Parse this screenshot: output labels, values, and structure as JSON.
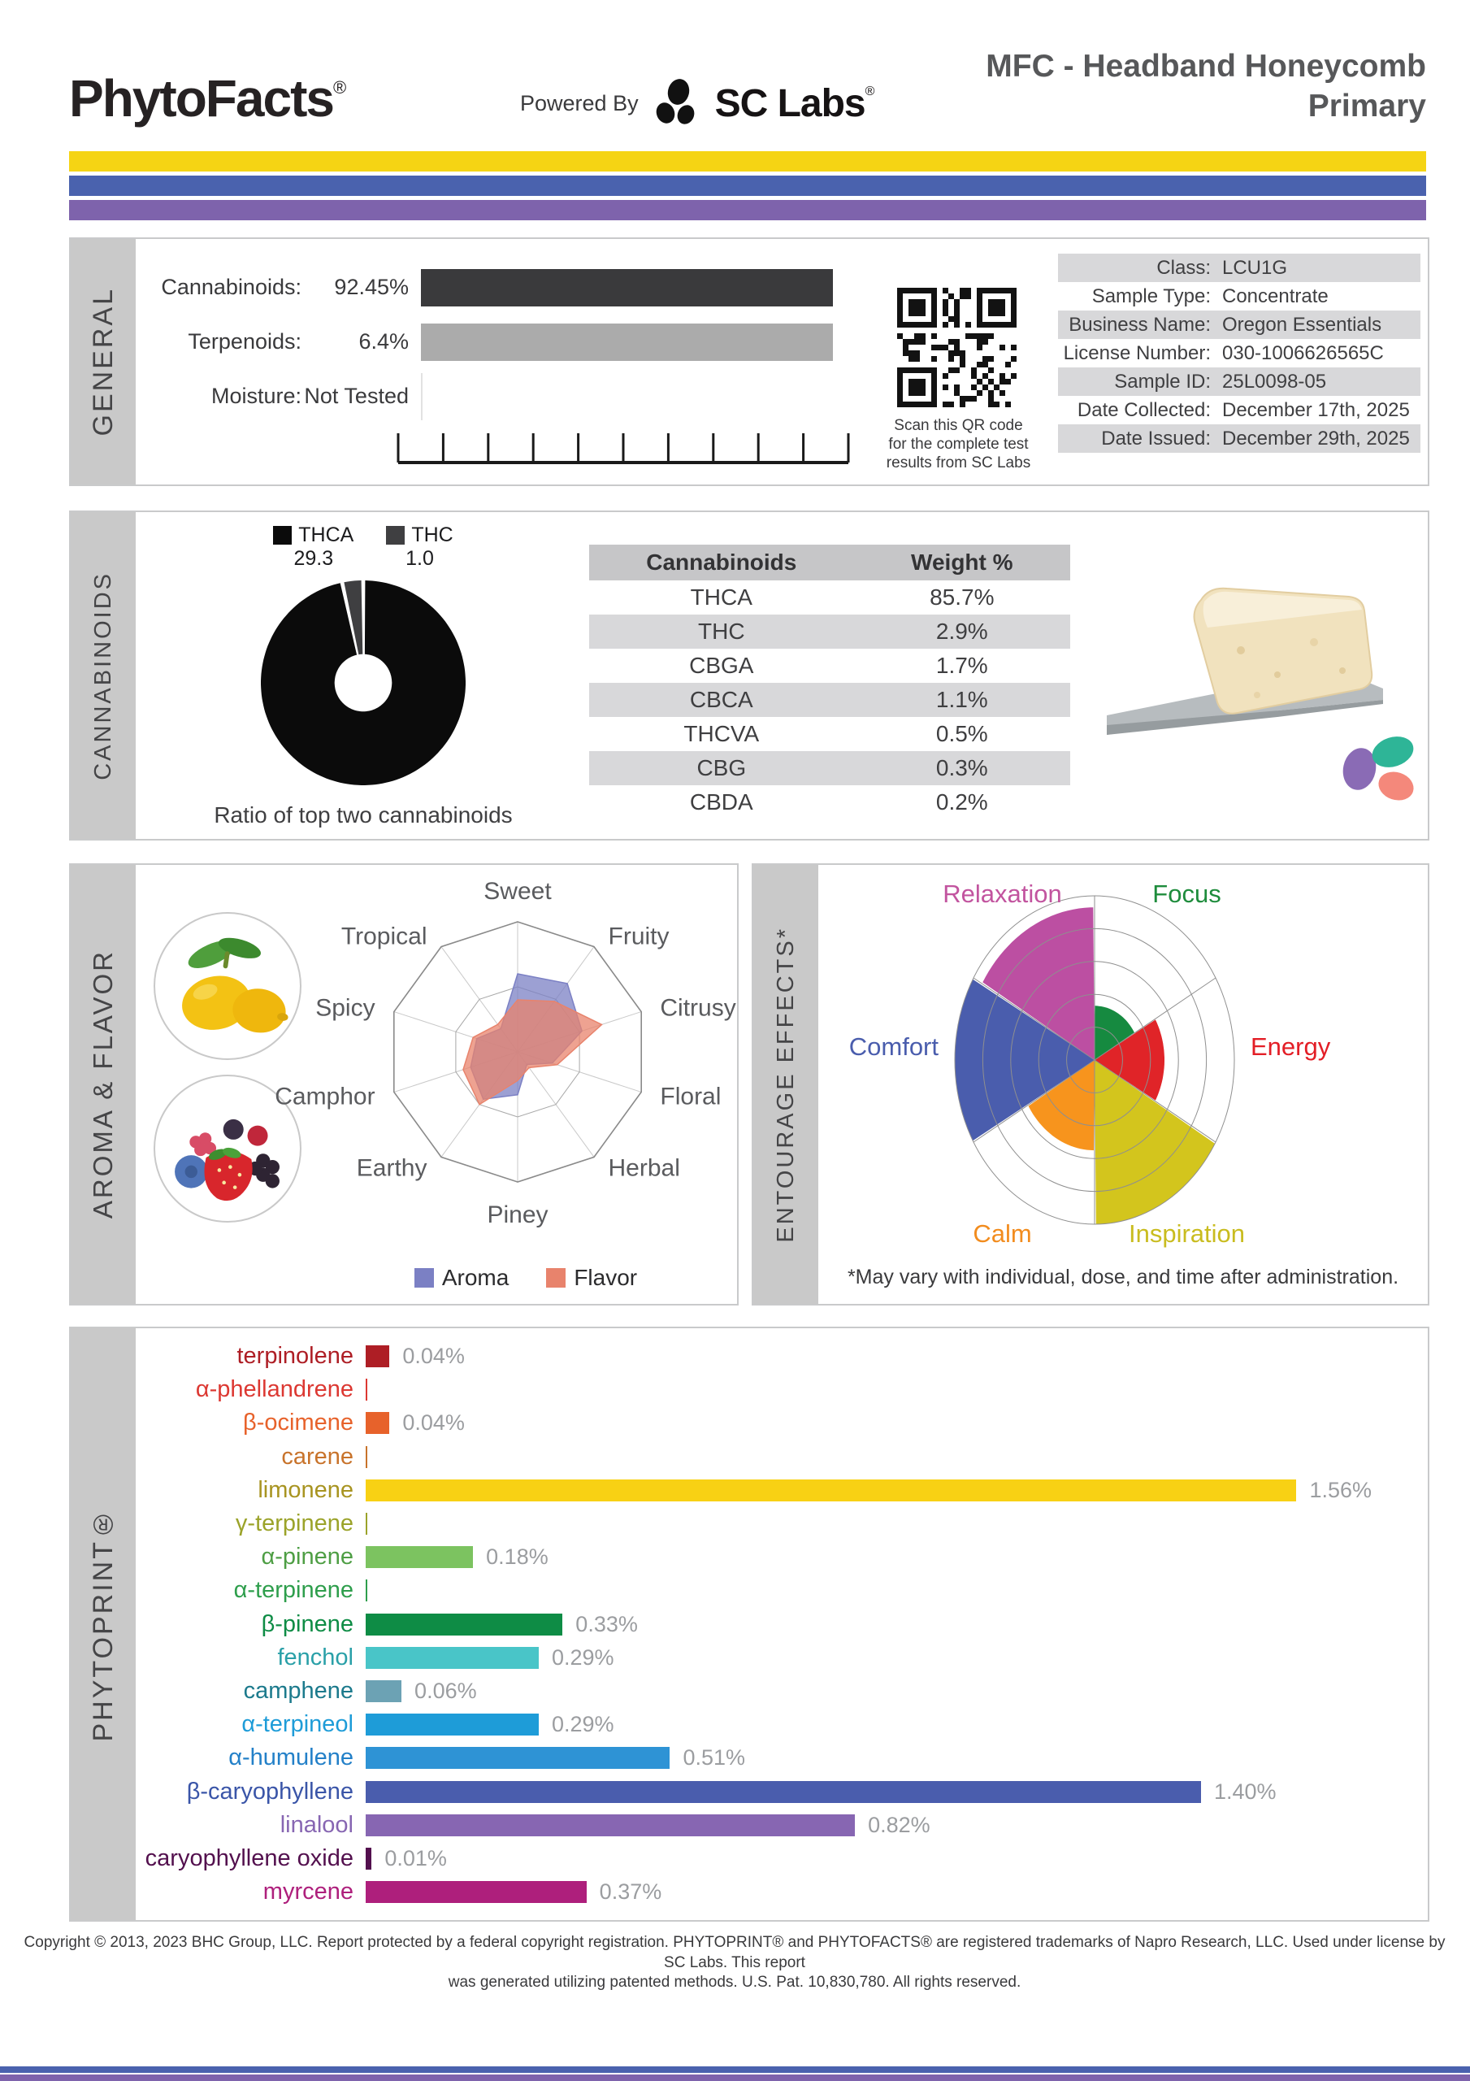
{
  "header": {
    "logo_text": "PhytoFacts",
    "logo_reg": "®",
    "powered_by": "Powered By",
    "sc_labs_text": "SC Labs",
    "sc_labs_reg": "®",
    "title_line1": "MFC - Headband Honeycomb",
    "title_line2": "Primary"
  },
  "stripes": {
    "yellow": "#F5D414",
    "blue": "#4A62AE",
    "purple": "#7E63AC"
  },
  "general": {
    "section_label": "GENERAL",
    "metrics": [
      {
        "label": "Cannabinoids:",
        "value": "92.45%",
        "bar_color": "#3A3A3C",
        "bar_pct": 97
      },
      {
        "label": "Terpenoids:",
        "value": "6.4%",
        "bar_color": "#ABABAB",
        "bar_pct": 97
      },
      {
        "label": "Moisture:",
        "value": "Not Tested",
        "bar_color": null,
        "bar_pct": 0
      }
    ],
    "ruler_intervals": 10,
    "qr_caption_lines": [
      "Scan this QR code",
      "for the complete test",
      "results from SC Labs"
    ],
    "info_table": [
      {
        "label": "Class:",
        "value": "LCU1G"
      },
      {
        "label": "Sample Type:",
        "value": "Concentrate"
      },
      {
        "label": "Business Name:",
        "value": "Oregon Essentials"
      },
      {
        "label": "License Number:",
        "value": "030-1006626565C"
      },
      {
        "label": "Sample ID:",
        "value": "25L0098-05"
      },
      {
        "label": "Date Collected:",
        "value": "December 17th, 2025"
      },
      {
        "label": "Date Issued:",
        "value": "December 29th, 2025"
      }
    ]
  },
  "cannabinoids": {
    "section_label": "CANNABINOIDS",
    "caption": "Ratio of top two cannabinoids",
    "table_headers": [
      "Cannabinoids",
      "Weight %"
    ],
    "table_rows": [
      [
        "THCA",
        "85.7%"
      ],
      [
        "THC",
        "2.9%"
      ],
      [
        "CBGA",
        "1.7%"
      ],
      [
        "CBCA",
        "1.1%"
      ],
      [
        "THCVA",
        "0.5%"
      ],
      [
        "CBG",
        "0.3%"
      ],
      [
        "CBDA",
        "0.2%"
      ]
    ]
  },
  "aroma_flavor": {
    "section_label": "AROMA & FLAVOR"
  },
  "entourage": {
    "section_label": "ENTOURAGE EFFECTS*",
    "footnote": "*May vary with individual, dose, and time after administration."
  },
  "phytoprint": {
    "section_label": "PHYTOPRINT®"
  },
  "footer_line1": "Copyright © 2013, 2023 BHC Group, LLC. Report protected by a federal copyright registration. PHYTOPRINT® and PHYTOFACTS® are registered trademarks of Napro Research, LLC. Used under license by SC Labs. This report",
  "footer_line2": "was generated utilizing patented methods. U.S. Pat. 10,830,780. All rights reserved.",
  "chart_data": [
    {
      "id": "general-bars",
      "type": "bar",
      "orientation": "horizontal",
      "title": "General composition",
      "bars": [
        {
          "name": "Cannabinoids",
          "value": 92.45,
          "display": "92.45%"
        },
        {
          "name": "Terpenoids",
          "value": 6.4,
          "display": "6.4%"
        },
        {
          "name": "Moisture",
          "value": null,
          "display": "Not Tested"
        }
      ]
    },
    {
      "id": "cannabinoid-ratio-donut",
      "type": "pie",
      "title": "Ratio of top two cannabinoids",
      "donut_hole": 0.28,
      "slices": [
        {
          "label": "THCA",
          "value": 29.3,
          "color": "#0B0B0B"
        },
        {
          "label": "THC",
          "value": 1.0,
          "color": "#3F3F41"
        }
      ]
    },
    {
      "id": "aroma-flavor-radar",
      "type": "radar",
      "axes": [
        "Sweet",
        "Fruity",
        "Citrusy",
        "Floral",
        "Herbal",
        "Piney",
        "Earthy",
        "Camphor",
        "Spicy",
        "Tropical"
      ],
      "scale_max": 1,
      "grid_levels": [
        1,
        0.5
      ],
      "series": [
        {
          "name": "Aroma",
          "color": "#7B80C4",
          "values": [
            0.6,
            0.65,
            0.52,
            0.28,
            0.12,
            0.33,
            0.45,
            0.38,
            0.33,
            0.22
          ]
        },
        {
          "name": "Flavor",
          "color": "#E8836C",
          "values": [
            0.4,
            0.48,
            0.68,
            0.32,
            0.15,
            0.22,
            0.5,
            0.44,
            0.36,
            0.26
          ]
        }
      ]
    },
    {
      "id": "entourage-polar",
      "type": "polar-sectors",
      "rings": 5,
      "sectors": [
        {
          "label": "Focus",
          "color": "#168A40",
          "label_color": "#1E8C3C",
          "value": 0.33
        },
        {
          "label": "Energy",
          "color": "#E02428",
          "label_color": "#E31E26",
          "value": 0.5
        },
        {
          "label": "Inspiration",
          "color": "#D3C51D",
          "label_color": "#C9BC1F",
          "value": 1.0
        },
        {
          "label": "Calm",
          "color": "#F7941D",
          "label_color": "#F28C1E",
          "value": 0.55
        },
        {
          "label": "Comfort",
          "color": "#4A5DAD",
          "label_color": "#4A5DAD",
          "value": 1.0
        },
        {
          "label": "Relaxation",
          "color": "#BC4FA2",
          "label_color": "#C2549F",
          "value": 0.93
        }
      ]
    },
    {
      "id": "phytoprint-bars",
      "type": "bar",
      "orientation": "horizontal",
      "unit": "%",
      "scale_max": 1.78,
      "bars": [
        {
          "name": "terpinolene",
          "value": 0.04,
          "display": "0.04%",
          "color": "#AE1E25",
          "label_color": "#AE1E25"
        },
        {
          "name": "α-phellandrene",
          "value": 0,
          "display": "",
          "color": "#DC3832",
          "label_color": "#DC3832"
        },
        {
          "name": "β-ocimene",
          "value": 0.04,
          "display": "0.04%",
          "color": "#E7622B",
          "label_color": "#E7622B"
        },
        {
          "name": "carene",
          "value": 0,
          "display": "",
          "color": "#C8732B",
          "label_color": "#C8732B"
        },
        {
          "name": "limonene",
          "value": 1.56,
          "display": "1.56%",
          "color": "#F8D114",
          "label_color": "#A89421"
        },
        {
          "name": "γ-terpinene",
          "value": 0,
          "display": "",
          "color": "#9BA32A",
          "label_color": "#9BA32A"
        },
        {
          "name": "α-pinene",
          "value": 0.18,
          "display": "0.18%",
          "color": "#7CC360",
          "label_color": "#4E9E44"
        },
        {
          "name": "α-terpinene",
          "value": 0,
          "display": "",
          "color": "#2E9E4C",
          "label_color": "#2E9E4C"
        },
        {
          "name": "β-pinene",
          "value": 0.33,
          "display": "0.33%",
          "color": "#0E8C45",
          "label_color": "#0E8C45"
        },
        {
          "name": "fenchol",
          "value": 0.29,
          "display": "0.29%",
          "color": "#49C5C8",
          "label_color": "#2AA0A8"
        },
        {
          "name": "camphene",
          "value": 0.06,
          "display": "0.06%",
          "color": "#6CA2B4",
          "label_color": "#1C7A8C"
        },
        {
          "name": "α-terpineol",
          "value": 0.29,
          "display": "0.29%",
          "color": "#1E9CD8",
          "label_color": "#1E9CD8"
        },
        {
          "name": "α-humulene",
          "value": 0.51,
          "display": "0.51%",
          "color": "#2E93D5",
          "label_color": "#2380C8"
        },
        {
          "name": "β-caryophyllene",
          "value": 1.4,
          "display": "1.40%",
          "color": "#4A5DAD",
          "label_color": "#3A55A8"
        },
        {
          "name": "linalool",
          "value": 0.82,
          "display": "0.82%",
          "color": "#8766B2",
          "label_color": "#8766B2"
        },
        {
          "name": "caryophyllene oxide",
          "value": 0.01,
          "display": "0.01%",
          "color": "#53104E",
          "label_color": "#53104E"
        },
        {
          "name": "myrcene",
          "value": 0.37,
          "display": "0.37%",
          "color": "#AE1F7C",
          "label_color": "#AE1F7C"
        }
      ]
    }
  ]
}
